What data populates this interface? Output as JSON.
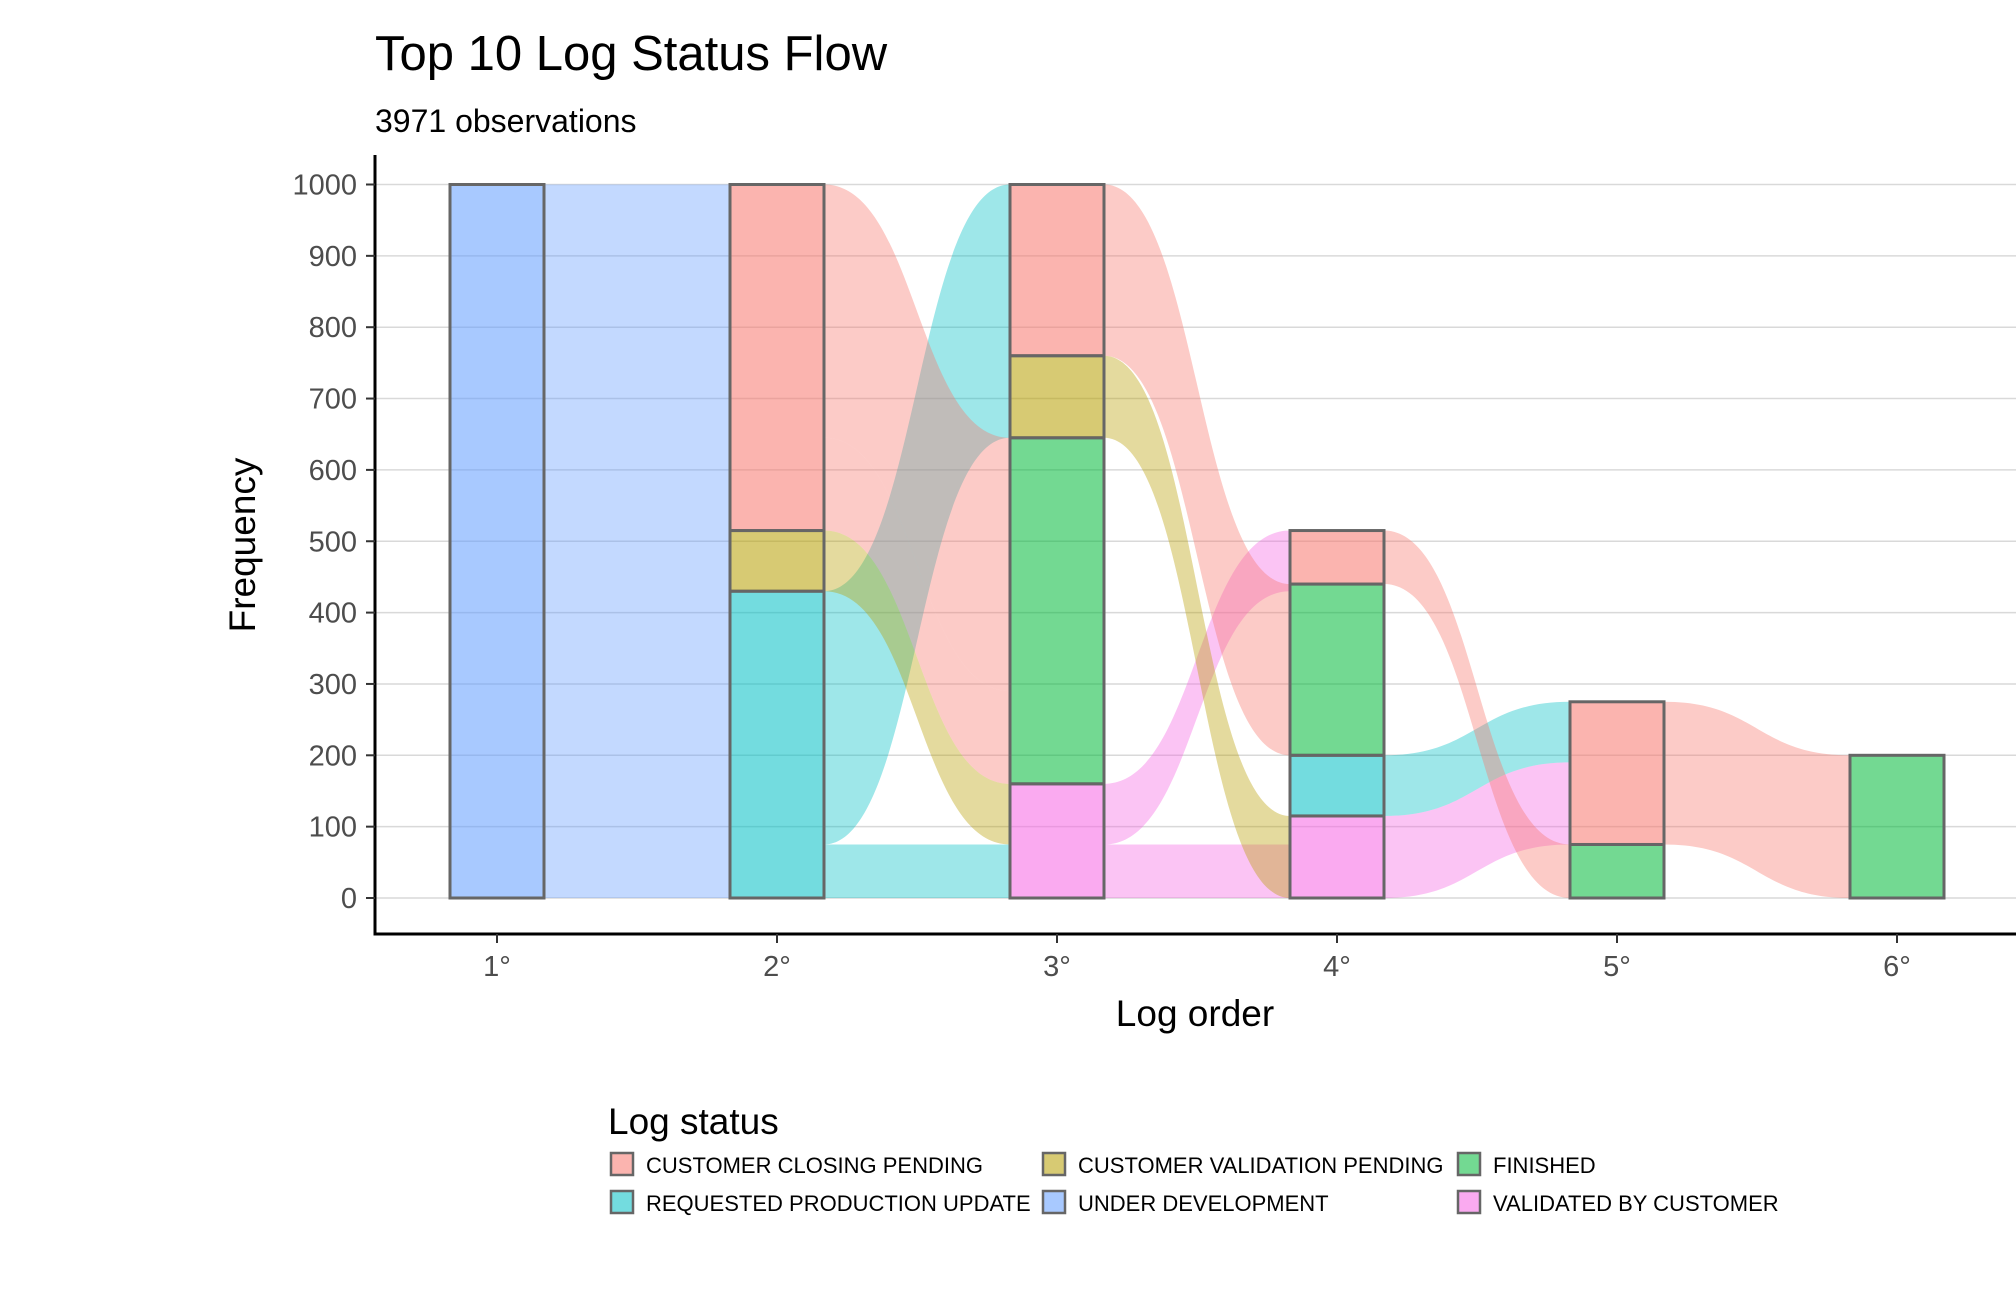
{
  "chart_data": {
    "type": "alluvial",
    "title": "Top 10 Log Status Flow",
    "subtitle": "3971 observations",
    "xlabel": "Log order",
    "ylabel": "Frequency",
    "ylim": [
      -48,
      1040
    ],
    "yticks": [
      0,
      100,
      200,
      300,
      400,
      500,
      600,
      700,
      800,
      900,
      1000
    ],
    "grid": "horizontal major",
    "legend_position": "bottom",
    "categories": [
      "1°",
      "2°",
      "3°",
      "4°",
      "5°",
      "6°"
    ],
    "statuses": [
      {
        "key": "ccp",
        "name": "CUSTOMER CLOSING PENDING",
        "color": "#F8766D"
      },
      {
        "key": "cvp",
        "name": "CUSTOMER VALIDATION PENDING",
        "color": "#B79F00"
      },
      {
        "key": "fin",
        "name": "FINISHED",
        "color": "#00BA38"
      },
      {
        "key": "rpu",
        "name": "REQUESTED PRODUCTION UPDATE",
        "color": "#00BFC4"
      },
      {
        "key": "udv",
        "name": "UNDER DEVELOPMENT",
        "color": "#619CFF"
      },
      {
        "key": "vbc",
        "name": "VALIDATED BY CUSTOMER",
        "color": "#F564E3"
      }
    ],
    "strata": [
      {
        "x": 0,
        "status": "udv",
        "value": 1000
      },
      {
        "x": 1,
        "status": "rpu",
        "value": 430
      },
      {
        "x": 1,
        "status": "cvp",
        "value": 85
      },
      {
        "x": 1,
        "status": "ccp",
        "value": 485
      },
      {
        "x": 2,
        "status": "vbc",
        "value": 160
      },
      {
        "x": 2,
        "status": "fin",
        "value": 485
      },
      {
        "x": 2,
        "status": "cvp",
        "value": 115
      },
      {
        "x": 2,
        "status": "ccp",
        "value": 240
      },
      {
        "x": 3,
        "status": "vbc",
        "value": 115
      },
      {
        "x": 3,
        "status": "rpu",
        "value": 85
      },
      {
        "x": 3,
        "status": "fin",
        "value": 240
      },
      {
        "x": 3,
        "status": "ccp",
        "value": 75
      },
      {
        "x": 4,
        "status": "fin",
        "value": 75
      },
      {
        "x": 4,
        "status": "ccp",
        "value": 200
      },
      {
        "x": 5,
        "status": "fin",
        "value": 200
      }
    ],
    "flows": [
      {
        "from_x": 0,
        "to_x": 1,
        "src_lo": 0,
        "src_hi": 1000,
        "dst_lo": 0,
        "dst_hi": 1000,
        "status": "udv"
      },
      {
        "from_x": 1,
        "to_x": 2,
        "src_lo": 0,
        "src_hi": 75,
        "dst_lo": 0,
        "dst_hi": 75,
        "status": "rpu"
      },
      {
        "from_x": 1,
        "to_x": 2,
        "src_lo": 75,
        "src_hi": 430,
        "dst_lo": 645,
        "dst_hi": 1000,
        "status": "rpu"
      },
      {
        "from_x": 1,
        "to_x": 2,
        "src_lo": 430,
        "src_hi": 515,
        "dst_lo": 75,
        "dst_hi": 160,
        "status": "cvp"
      },
      {
        "from_x": 1,
        "to_x": 2,
        "src_lo": 515,
        "src_hi": 645,
        "dst_lo": 160,
        "dst_hi": 290,
        "status": "ccp"
      },
      {
        "from_x": 1,
        "to_x": 2,
        "src_lo": 645,
        "src_hi": 1000,
        "dst_lo": 290,
        "dst_hi": 645,
        "status": "ccp"
      },
      {
        "from_x": 2,
        "to_x": 3,
        "src_lo": 0,
        "src_hi": 75,
        "dst_lo": 0,
        "dst_hi": 75,
        "status": "vbc"
      },
      {
        "from_x": 2,
        "to_x": 3,
        "src_lo": 75,
        "src_hi": 160,
        "dst_lo": 430,
        "dst_hi": 515,
        "status": "vbc"
      },
      {
        "from_x": 2,
        "to_x": 3,
        "src_lo": 645,
        "src_hi": 760,
        "dst_lo": 0,
        "dst_hi": 115,
        "status": "cvp"
      },
      {
        "from_x": 2,
        "to_x": 3,
        "src_lo": 760,
        "src_hi": 1000,
        "dst_lo": 200,
        "dst_hi": 440,
        "status": "ccp"
      },
      {
        "from_x": 3,
        "to_x": 4,
        "src_lo": 0,
        "src_hi": 115,
        "dst_lo": 75,
        "dst_hi": 190,
        "status": "vbc"
      },
      {
        "from_x": 3,
        "to_x": 4,
        "src_lo": 115,
        "src_hi": 200,
        "dst_lo": 190,
        "dst_hi": 275,
        "status": "rpu"
      },
      {
        "from_x": 3,
        "to_x": 4,
        "src_lo": 440,
        "src_hi": 515,
        "dst_lo": 0,
        "dst_hi": 75,
        "status": "ccp"
      },
      {
        "from_x": 4,
        "to_x": 5,
        "src_lo": 75,
        "src_hi": 275,
        "dst_lo": 0,
        "dst_hi": 200,
        "status": "ccp"
      }
    ]
  }
}
